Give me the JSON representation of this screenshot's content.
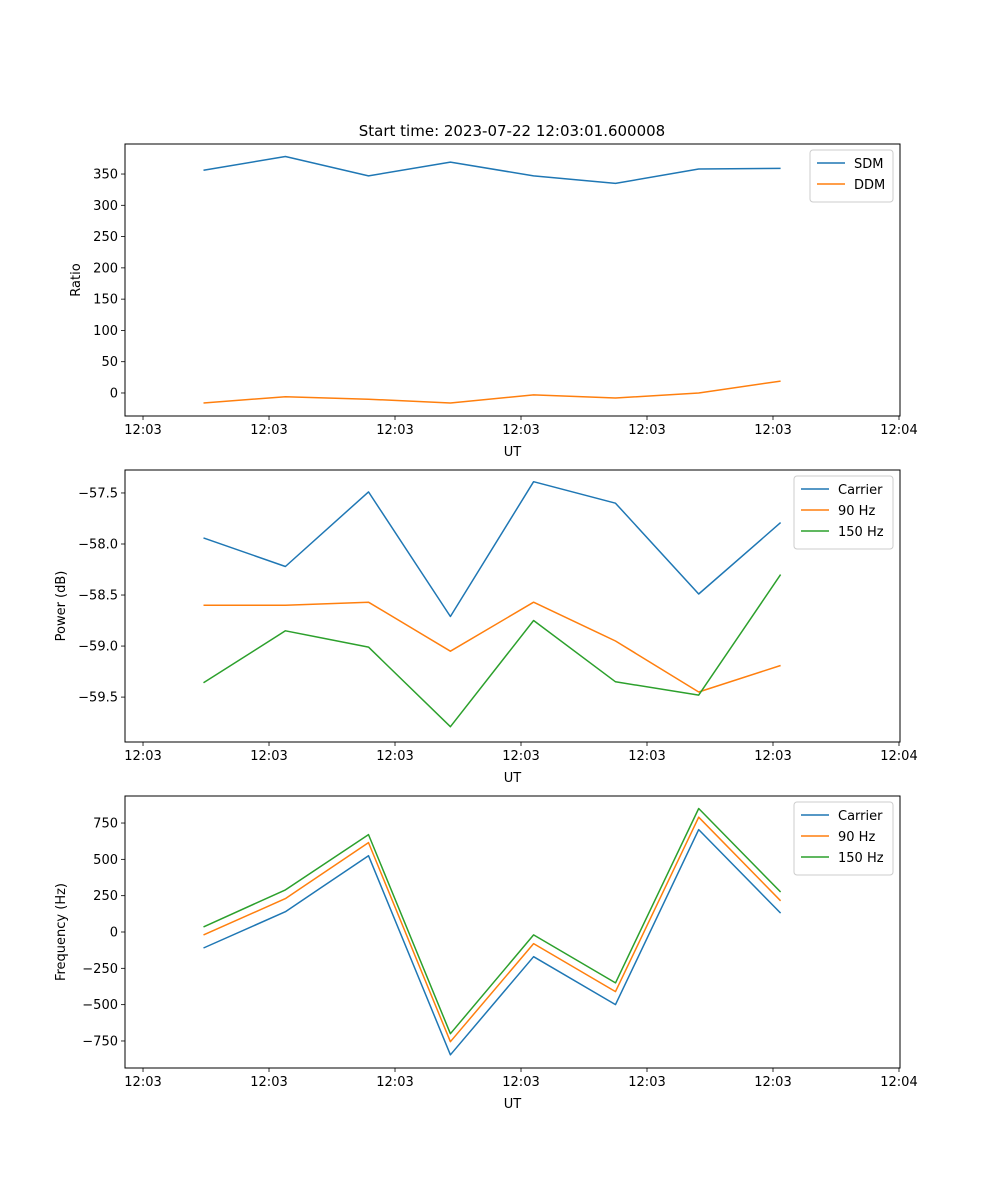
{
  "figure_title": "Start time: 2023-07-22 12:03:01.600008",
  "chart_data": [
    {
      "type": "line",
      "title": "Start time: 2023-07-22 12:03:01.600008",
      "xlabel": "UT",
      "ylabel": "Ratio",
      "x_units": "seconds after 12:03:00",
      "x": [
        4.8,
        11.3,
        17.9,
        24.4,
        31.0,
        37.5,
        44.1,
        50.6
      ],
      "xlim": [
        -1.43,
        60.08
      ],
      "xticks": [
        0,
        10,
        20,
        30,
        40,
        50,
        60
      ],
      "xtick_labels": [
        "12:03",
        "12:03",
        "12:03",
        "12:03",
        "12:03",
        "12:03",
        "12:04"
      ],
      "ylim": [
        -36.8,
        398
      ],
      "yticks": [
        0,
        50,
        100,
        150,
        200,
        250,
        300,
        350
      ],
      "ytick_labels": [
        "0",
        "50",
        "100",
        "150",
        "200",
        "250",
        "300",
        "350"
      ],
      "legend": "top-right",
      "grid": false,
      "series": [
        {
          "name": "SDM",
          "color": "#1f77b4",
          "values": [
            356,
            378,
            347,
            369,
            347,
            335,
            358,
            359
          ]
        },
        {
          "name": "DDM",
          "color": "#ff7f0e",
          "values": [
            -16,
            -6,
            -10,
            -16,
            -3,
            -8,
            0,
            19
          ]
        }
      ]
    },
    {
      "type": "line",
      "title": "",
      "xlabel": "UT",
      "ylabel": "Power (dB)",
      "x_units": "seconds after 12:03:00",
      "x": [
        4.8,
        11.3,
        17.9,
        24.4,
        31.0,
        37.5,
        44.1,
        50.6
      ],
      "xlim": [
        -1.43,
        60.08
      ],
      "xticks": [
        0,
        10,
        20,
        30,
        40,
        50,
        60
      ],
      "xtick_labels": [
        "12:03",
        "12:03",
        "12:03",
        "12:03",
        "12:03",
        "12:03",
        "12:04"
      ],
      "ylim": [
        -59.94,
        -57.275
      ],
      "yticks": [
        -57.5,
        -58.0,
        -58.5,
        -59.0,
        -59.5
      ],
      "ytick_labels": [
        "−57.5",
        "−58.0",
        "−58.5",
        "−59.0",
        "−59.5"
      ],
      "legend": "top-right",
      "grid": false,
      "series": [
        {
          "name": "Carrier",
          "color": "#1f77b4",
          "values": [
            -57.94,
            -58.22,
            -57.49,
            -58.71,
            -57.39,
            -57.6,
            -58.49,
            -57.79
          ]
        },
        {
          "name": "90 Hz",
          "color": "#ff7f0e",
          "values": [
            -58.6,
            -58.6,
            -58.57,
            -59.05,
            -58.57,
            -58.95,
            -59.45,
            -59.19
          ]
        },
        {
          "name": "150 Hz",
          "color": "#2ca02c",
          "values": [
            -59.36,
            -58.85,
            -59.01,
            -59.79,
            -58.75,
            -59.35,
            -59.48,
            -58.3
          ]
        }
      ]
    },
    {
      "type": "line",
      "title": "",
      "xlabel": "UT",
      "ylabel": "Frequency (Hz)",
      "x_units": "seconds after 12:03:00",
      "x": [
        4.8,
        11.3,
        17.9,
        24.4,
        31.0,
        37.5,
        44.1,
        50.6
      ],
      "xlim": [
        -1.43,
        60.08
      ],
      "xticks": [
        0,
        10,
        20,
        30,
        40,
        50,
        60
      ],
      "xtick_labels": [
        "12:03",
        "12:03",
        "12:03",
        "12:03",
        "12:03",
        "12:03",
        "12:04"
      ],
      "ylim": [
        -936,
        936
      ],
      "yticks": [
        750,
        500,
        250,
        0,
        -250,
        -500,
        -750
      ],
      "ytick_labels": [
        "750",
        "500",
        "250",
        "0",
        "−250",
        "−500",
        "−750"
      ],
      "legend": "top-right",
      "grid": false,
      "series": [
        {
          "name": "Carrier",
          "color": "#1f77b4",
          "values": [
            -110,
            140,
            525,
            -845,
            -170,
            -500,
            705,
            130
          ]
        },
        {
          "name": "90 Hz",
          "color": "#ff7f0e",
          "values": [
            -20,
            230,
            615,
            -755,
            -80,
            -410,
            790,
            215
          ]
        },
        {
          "name": "150 Hz",
          "color": "#2ca02c",
          "values": [
            35,
            290,
            670,
            -700,
            -20,
            -350,
            850,
            275
          ]
        }
      ]
    }
  ]
}
